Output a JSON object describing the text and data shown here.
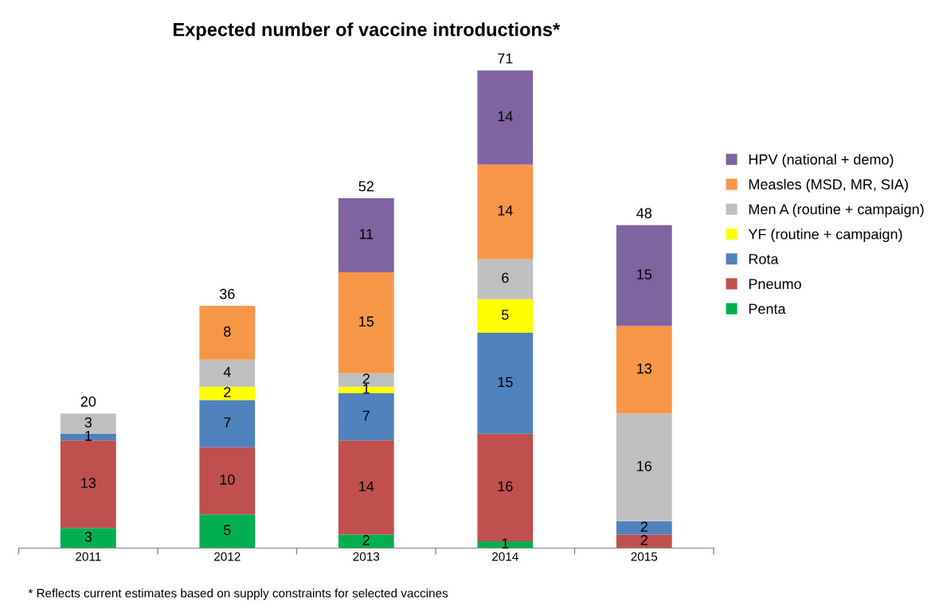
{
  "chart_data": {
    "type": "bar",
    "title": "Expected number of vaccine introductions*",
    "stacked": true,
    "data_labels": true,
    "legend": "right",
    "grid": false,
    "categories": [
      "2011",
      "2012",
      "2013",
      "2014",
      "2015"
    ],
    "series": [
      {
        "name": "Penta",
        "color": "#00b050",
        "values": [
          3,
          5,
          2,
          1,
          null
        ]
      },
      {
        "name": "Pneumo",
        "color": "#c0504d",
        "values": [
          13,
          10,
          14,
          16,
          2
        ]
      },
      {
        "name": "Rota",
        "color": "#4f81bd",
        "values": [
          1,
          7,
          7,
          15,
          2
        ]
      },
      {
        "name": "YF (routine + campaign)",
        "color": "#ffff00",
        "values": [
          null,
          2,
          1,
          5,
          null
        ]
      },
      {
        "name": "Men A (routine + campaign)",
        "color": "#bfbfbf",
        "values": [
          3,
          4,
          2,
          6,
          16
        ]
      },
      {
        "name": "Measles (MSD, MR, SIA)",
        "color": "#f79646",
        "values": [
          null,
          8,
          15,
          14,
          13
        ]
      },
      {
        "name": "HPV (national + demo)",
        "color": "#8064a2",
        "values": [
          null,
          null,
          11,
          14,
          15
        ]
      }
    ],
    "totals": [
      "20",
      "36",
      "52",
      "71",
      "48"
    ],
    "annotations": [
      "* Reflects current estimates based on supply constraints for selected vaccines"
    ]
  }
}
